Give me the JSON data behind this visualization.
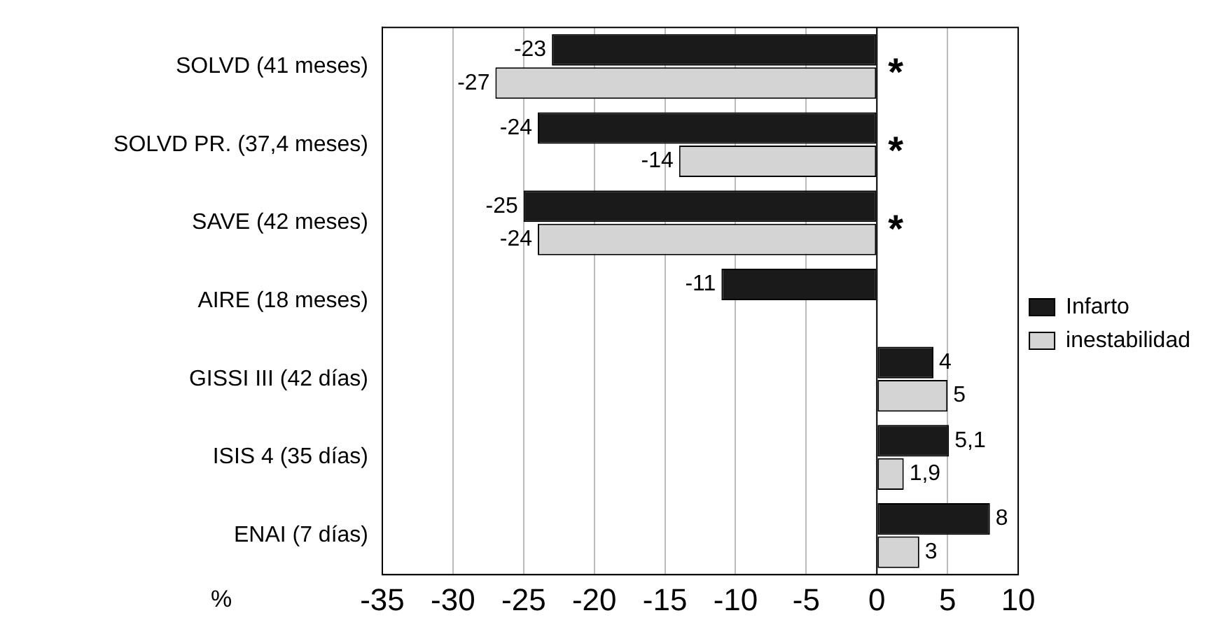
{
  "chart_data": {
    "type": "bar",
    "orientation": "horizontal",
    "xlabel": "%",
    "categories": [
      "SOLVD (41 meses)",
      "SOLVD PR. (37,4 meses)",
      "SAVE (42 meses)",
      "AIRE (18 meses)",
      "GISSI III (42 días)",
      "ISIS 4 (35 días)",
      "ENAI (7 días)"
    ],
    "series": [
      {
        "name": "Infarto",
        "color": "#1a1a1a",
        "values": [
          -23,
          -24,
          -25,
          -11,
          4,
          5.1,
          8
        ],
        "value_labels": [
          "-23",
          "-24",
          "-25",
          "-11",
          "4",
          "5,1",
          "8"
        ]
      },
      {
        "name": "inestabilidad",
        "color": "#d4d4d4",
        "values": [
          -27,
          -14,
          -24,
          null,
          5,
          1.9,
          3
        ],
        "value_labels": [
          "-27",
          "-14",
          "-24",
          null,
          "5",
          "1,9",
          "3"
        ]
      }
    ],
    "xlim": [
      -35,
      10
    ],
    "xticks": [
      -35,
      -30,
      -25,
      -20,
      -15,
      -10,
      -5,
      0,
      5,
      10
    ],
    "annotations": [
      "*",
      "*",
      "*"
    ],
    "grid": "x",
    "legend": "right"
  }
}
